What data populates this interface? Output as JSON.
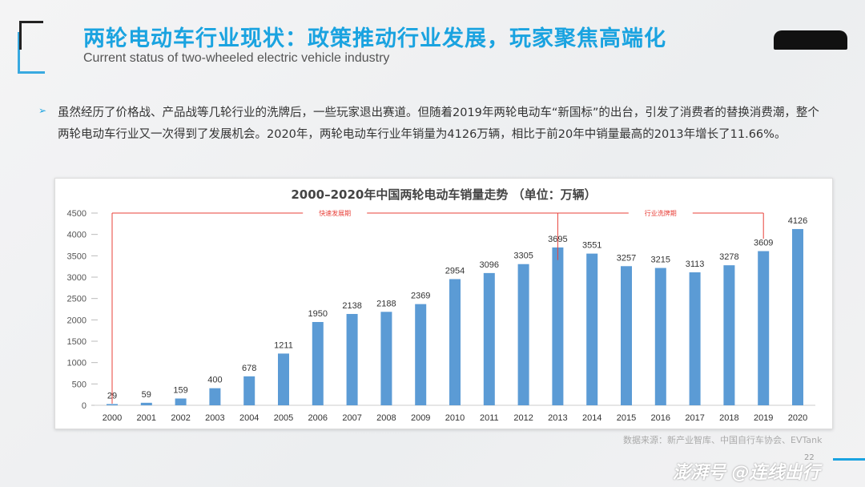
{
  "header": {
    "title": "两轮电动车行业现状：政策推动行业发展，玩家聚焦高端化",
    "subtitle": "Current status of two-wheeled electric vehicle industry",
    "logo_text": "连线出行"
  },
  "body": {
    "bullet": "➢",
    "paragraph": "虽然经历了价格战、产品战等几轮行业的洗牌后，一些玩家退出赛道。但随着2019年两轮电动车“新国标”的出台，引发了消费者的替换消费潮，整个两轮电动车行业又一次得到了发展机会。2020年，两轮电动车行业年销量为4126万辆，相比于前20年中销量最高的2013年增长了11.66%。"
  },
  "chart_data": {
    "type": "bar",
    "title": "2000–2020年中国两轮电动车销量走势  （单位：万辆）",
    "categories": [
      "2000",
      "2001",
      "2002",
      "2003",
      "2004",
      "2005",
      "2006",
      "2007",
      "2008",
      "2009",
      "2010",
      "2011",
      "2012",
      "2013",
      "2014",
      "2015",
      "2016",
      "2017",
      "2018",
      "2019",
      "2020"
    ],
    "values": [
      29,
      59,
      159,
      400,
      678,
      1211,
      1950,
      2138,
      2188,
      2369,
      2954,
      3096,
      3305,
      3695,
      3551,
      3257,
      3215,
      3113,
      3278,
      3609,
      4126
    ],
    "yticks": [
      0,
      500,
      1000,
      1500,
      2000,
      2500,
      3000,
      3500,
      4000,
      4500
    ],
    "ylim": [
      0,
      4500
    ],
    "grid": false,
    "bar_color": "#5b9bd5",
    "annotations": [
      {
        "label": "快速发展期",
        "from": "2000",
        "to": "2013"
      },
      {
        "label": "行业洗牌期",
        "from": "2013",
        "to": "2019"
      }
    ],
    "annotation_color": "#e8413a"
  },
  "footer": {
    "source": "数据来源：新产业智库、中国自行车协会、EVTank",
    "watermark": "澎湃号 @连线出行",
    "page": "22"
  },
  "colors": {
    "accent": "#1aa3e0"
  }
}
